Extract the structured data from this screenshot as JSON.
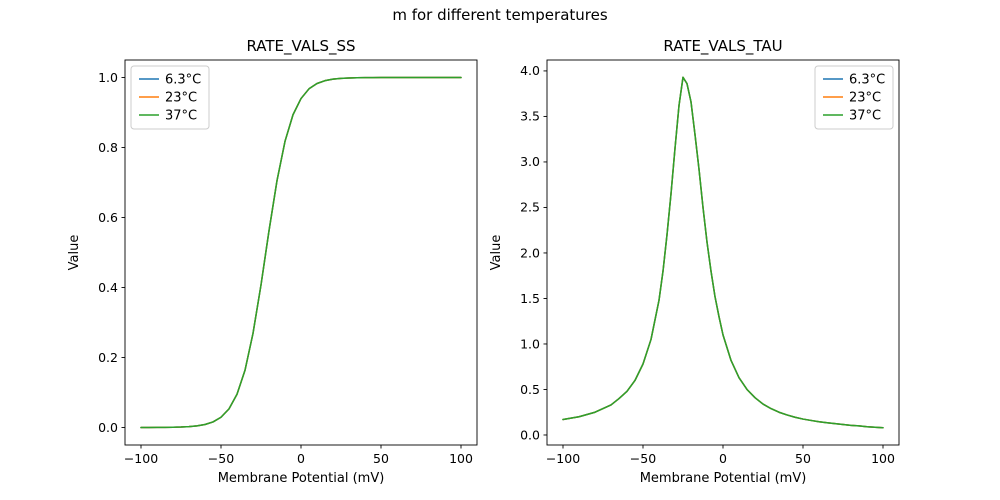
{
  "figure": {
    "suptitle": "m for different temperatures",
    "background": "#ffffff"
  },
  "chart_data": [
    {
      "type": "line",
      "title": "RATE_VALS_SS",
      "xlabel": "Membrane Potential (mV)",
      "ylabel": "Value",
      "xlim": [
        -110,
        110
      ],
      "ylim": [
        -0.05,
        1.05
      ],
      "grid": false,
      "xticks": {
        "values": [
          -100,
          -50,
          0,
          50,
          100
        ],
        "labels": [
          "−100",
          "−50",
          "0",
          "50",
          "100"
        ]
      },
      "yticks": {
        "values": [
          0.0,
          0.2,
          0.4,
          0.6,
          0.8,
          1.0
        ],
        "labels": [
          "0.0",
          "0.2",
          "0.4",
          "0.6",
          "0.8",
          "1.0"
        ]
      },
      "legend": {
        "loc": "upper left",
        "entries": [
          {
            "label": "6.3°C",
            "color": "#1f77b4"
          },
          {
            "label": "23°C",
            "color": "#ff7f0e"
          },
          {
            "label": "37°C",
            "color": "#2ca02c"
          }
        ]
      },
      "x": [
        -100,
        -95,
        -90,
        -85,
        -80,
        -75,
        -70,
        -65,
        -60,
        -55,
        -50,
        -45,
        -40,
        -35,
        -30,
        -25,
        -20,
        -15,
        -10,
        -5,
        0,
        5,
        10,
        15,
        20,
        25,
        30,
        35,
        40,
        45,
        50,
        55,
        60,
        65,
        70,
        75,
        80,
        85,
        90,
        95,
        100
      ],
      "series": [
        {
          "name": "6.3°C",
          "color": "#1f77b4",
          "values": [
            0.0001,
            0.0001,
            0.0002,
            0.0004,
            0.0007,
            0.0013,
            0.0025,
            0.0046,
            0.0086,
            0.0159,
            0.0293,
            0.0532,
            0.0949,
            0.1636,
            0.2689,
            0.4073,
            0.5622,
            0.7054,
            0.8176,
            0.8936,
            0.9399,
            0.9677,
            0.9829,
            0.991,
            0.9953,
            0.9975,
            0.9987,
            0.9993,
            0.9996,
            0.9998,
            0.9999,
            0.9999,
            1.0,
            1.0,
            1.0,
            1.0,
            1.0,
            1.0,
            1.0,
            1.0,
            1.0
          ]
        },
        {
          "name": "23°C",
          "color": "#ff7f0e",
          "values": [
            0.0001,
            0.0001,
            0.0002,
            0.0004,
            0.0007,
            0.0013,
            0.0025,
            0.0046,
            0.0086,
            0.0159,
            0.0293,
            0.0532,
            0.0949,
            0.1636,
            0.2689,
            0.4073,
            0.5622,
            0.7054,
            0.8176,
            0.8936,
            0.9399,
            0.9677,
            0.9829,
            0.991,
            0.9953,
            0.9975,
            0.9987,
            0.9993,
            0.9996,
            0.9998,
            0.9999,
            0.9999,
            1.0,
            1.0,
            1.0,
            1.0,
            1.0,
            1.0,
            1.0,
            1.0,
            1.0
          ]
        },
        {
          "name": "37°C",
          "color": "#2ca02c",
          "values": [
            0.0001,
            0.0001,
            0.0002,
            0.0004,
            0.0007,
            0.0013,
            0.0025,
            0.0046,
            0.0086,
            0.0159,
            0.0293,
            0.0532,
            0.0949,
            0.1636,
            0.2689,
            0.4073,
            0.5622,
            0.7054,
            0.8176,
            0.8936,
            0.9399,
            0.9677,
            0.9829,
            0.991,
            0.9953,
            0.9975,
            0.9987,
            0.9993,
            0.9996,
            0.9998,
            0.9999,
            0.9999,
            1.0,
            1.0,
            1.0,
            1.0,
            1.0,
            1.0,
            1.0,
            1.0,
            1.0
          ]
        }
      ]
    },
    {
      "type": "line",
      "title": "RATE_VALS_TAU",
      "xlabel": "Membrane Potential (mV)",
      "ylabel": "Value",
      "xlim": [
        -110,
        110
      ],
      "ylim": [
        -0.11,
        4.12
      ],
      "grid": false,
      "xticks": {
        "values": [
          -100,
          -50,
          0,
          50,
          100
        ],
        "labels": [
          "−100",
          "−50",
          "0",
          "50",
          "100"
        ]
      },
      "yticks": {
        "values": [
          0.0,
          0.5,
          1.0,
          1.5,
          2.0,
          2.5,
          3.0,
          3.5,
          4.0
        ],
        "labels": [
          "0.0",
          "0.5",
          "1.0",
          "1.5",
          "2.0",
          "2.5",
          "3.0",
          "3.5",
          "4.0"
        ]
      },
      "legend": {
        "loc": "upper right",
        "entries": [
          {
            "label": "6.3°C",
            "color": "#1f77b4"
          },
          {
            "label": "23°C",
            "color": "#ff7f0e"
          },
          {
            "label": "37°C",
            "color": "#2ca02c"
          }
        ]
      },
      "x": [
        -100,
        -95,
        -90,
        -85,
        -80,
        -75,
        -70,
        -65,
        -60,
        -55,
        -50,
        -45,
        -40,
        -37.5,
        -35,
        -32.5,
        -30,
        -27.5,
        -25,
        -22.5,
        -20,
        -17.5,
        -15,
        -12.5,
        -10,
        -7.5,
        -5,
        -2.5,
        0,
        5,
        10,
        15,
        20,
        25,
        30,
        35,
        40,
        45,
        50,
        55,
        60,
        65,
        70,
        75,
        80,
        85,
        90,
        95,
        100
      ],
      "series": [
        {
          "name": "6.3°C",
          "color": "#1f77b4",
          "values": [
            0.17,
            0.185,
            0.2,
            0.225,
            0.25,
            0.29,
            0.33,
            0.4,
            0.48,
            0.6,
            0.78,
            1.05,
            1.48,
            1.8,
            2.2,
            2.65,
            3.15,
            3.62,
            3.93,
            3.86,
            3.66,
            3.3,
            2.92,
            2.5,
            2.12,
            1.8,
            1.52,
            1.3,
            1.1,
            0.82,
            0.63,
            0.5,
            0.41,
            0.34,
            0.29,
            0.25,
            0.22,
            0.195,
            0.175,
            0.16,
            0.145,
            0.135,
            0.125,
            0.115,
            0.105,
            0.1,
            0.09,
            0.085,
            0.08
          ]
        },
        {
          "name": "23°C",
          "color": "#ff7f0e",
          "values": [
            0.17,
            0.185,
            0.2,
            0.225,
            0.25,
            0.29,
            0.33,
            0.4,
            0.48,
            0.6,
            0.78,
            1.05,
            1.48,
            1.8,
            2.2,
            2.65,
            3.15,
            3.62,
            3.93,
            3.86,
            3.66,
            3.3,
            2.92,
            2.5,
            2.12,
            1.8,
            1.52,
            1.3,
            1.1,
            0.82,
            0.63,
            0.5,
            0.41,
            0.34,
            0.29,
            0.25,
            0.22,
            0.195,
            0.175,
            0.16,
            0.145,
            0.135,
            0.125,
            0.115,
            0.105,
            0.1,
            0.09,
            0.085,
            0.08
          ]
        },
        {
          "name": "37°C",
          "color": "#2ca02c",
          "values": [
            0.17,
            0.185,
            0.2,
            0.225,
            0.25,
            0.29,
            0.33,
            0.4,
            0.48,
            0.6,
            0.78,
            1.05,
            1.48,
            1.8,
            2.2,
            2.65,
            3.15,
            3.62,
            3.93,
            3.86,
            3.66,
            3.3,
            2.92,
            2.5,
            2.12,
            1.8,
            1.52,
            1.3,
            1.1,
            0.82,
            0.63,
            0.5,
            0.41,
            0.34,
            0.29,
            0.25,
            0.22,
            0.195,
            0.175,
            0.16,
            0.145,
            0.135,
            0.125,
            0.115,
            0.105,
            0.1,
            0.09,
            0.085,
            0.08
          ]
        }
      ]
    }
  ]
}
